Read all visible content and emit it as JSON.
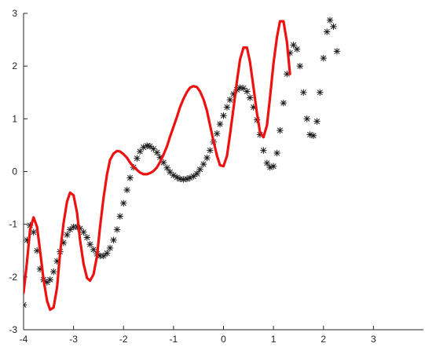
{
  "chart_data": {
    "type": "line",
    "title": "",
    "xlabel": "",
    "ylabel": "",
    "xlim": [
      -4,
      4
    ],
    "ylim": [
      -3,
      3
    ],
    "xticks": [
      "-4",
      "-3",
      "-2",
      "-1",
      "0",
      "1",
      "2",
      "3"
    ],
    "yticks": [
      "-3",
      "-2",
      "-1",
      "0",
      "1",
      "2",
      "3"
    ],
    "grid": false,
    "legend": "none",
    "series": [
      {
        "style": "markers",
        "marker": "asterisk",
        "color": "#1a1a1a",
        "points": [
          [
            -4.0,
            -2.53
          ],
          [
            -3.93,
            -1.3
          ],
          [
            -3.87,
            -1.02
          ],
          [
            -3.8,
            -1.15
          ],
          [
            -3.73,
            -1.5
          ],
          [
            -3.67,
            -1.85
          ],
          [
            -3.6,
            -2.05
          ],
          [
            -3.53,
            -2.1
          ],
          [
            -3.47,
            -2.05
          ],
          [
            -3.4,
            -1.9
          ],
          [
            -3.33,
            -1.7
          ],
          [
            -3.27,
            -1.52
          ],
          [
            -3.2,
            -1.35
          ],
          [
            -3.13,
            -1.2
          ],
          [
            -3.07,
            -1.1
          ],
          [
            -3.0,
            -1.05
          ],
          [
            -2.93,
            -1.05
          ],
          [
            -2.87,
            -1.08
          ],
          [
            -2.8,
            -1.15
          ],
          [
            -2.73,
            -1.25
          ],
          [
            -2.67,
            -1.38
          ],
          [
            -2.6,
            -1.48
          ],
          [
            -2.53,
            -1.56
          ],
          [
            -2.47,
            -1.6
          ],
          [
            -2.4,
            -1.6
          ],
          [
            -2.33,
            -1.55
          ],
          [
            -2.27,
            -1.45
          ],
          [
            -2.2,
            -1.3
          ],
          [
            -2.13,
            -1.1
          ],
          [
            -2.07,
            -0.85
          ],
          [
            -2.0,
            -0.6
          ],
          [
            -1.93,
            -0.35
          ],
          [
            -1.87,
            -0.12
          ],
          [
            -1.8,
            0.08
          ],
          [
            -1.73,
            0.25
          ],
          [
            -1.67,
            0.38
          ],
          [
            -1.6,
            0.46
          ],
          [
            -1.53,
            0.49
          ],
          [
            -1.47,
            0.48
          ],
          [
            -1.4,
            0.43
          ],
          [
            -1.33,
            0.36
          ],
          [
            -1.27,
            0.27
          ],
          [
            -1.2,
            0.17
          ],
          [
            -1.13,
            0.07
          ],
          [
            -1.07,
            -0.01
          ],
          [
            -1.0,
            -0.07
          ],
          [
            -0.93,
            -0.11
          ],
          [
            -0.87,
            -0.14
          ],
          [
            -0.8,
            -0.15
          ],
          [
            -0.73,
            -0.14
          ],
          [
            -0.67,
            -0.12
          ],
          [
            -0.6,
            -0.09
          ],
          [
            -0.53,
            -0.04
          ],
          [
            -0.47,
            0.04
          ],
          [
            -0.4,
            0.14
          ],
          [
            -0.33,
            0.26
          ],
          [
            -0.27,
            0.4
          ],
          [
            -0.2,
            0.56
          ],
          [
            -0.13,
            0.72
          ],
          [
            -0.07,
            0.9
          ],
          [
            0.0,
            1.06
          ],
          [
            0.07,
            1.22
          ],
          [
            0.13,
            1.36
          ],
          [
            0.2,
            1.47
          ],
          [
            0.27,
            1.55
          ],
          [
            0.33,
            1.59
          ],
          [
            0.4,
            1.58
          ],
          [
            0.47,
            1.52
          ],
          [
            0.53,
            1.4
          ],
          [
            0.6,
            1.22
          ],
          [
            0.67,
            0.98
          ],
          [
            0.73,
            0.7
          ],
          [
            0.8,
            0.4
          ],
          [
            0.87,
            0.16
          ],
          [
            0.93,
            0.08
          ],
          [
            1.0,
            0.1
          ],
          [
            1.07,
            0.35
          ],
          [
            1.13,
            0.78
          ],
          [
            1.2,
            1.3
          ],
          [
            1.27,
            1.85
          ],
          [
            1.33,
            2.25
          ],
          [
            1.4,
            2.4
          ],
          [
            1.47,
            2.32
          ],
          [
            1.53,
            2.0
          ],
          [
            1.6,
            1.5
          ],
          [
            1.67,
            1.0
          ],
          [
            1.73,
            0.7
          ],
          [
            1.8,
            0.68
          ],
          [
            1.87,
            0.95
          ],
          [
            1.93,
            1.5
          ],
          [
            2.0,
            2.15
          ],
          [
            2.07,
            2.65
          ],
          [
            2.13,
            2.87
          ],
          [
            2.2,
            2.75
          ],
          [
            2.27,
            2.28
          ]
        ]
      },
      {
        "style": "line",
        "color": "#ee1111",
        "points": [
          [
            -4.0,
            -2.3
          ],
          [
            -3.93,
            -1.7
          ],
          [
            -3.87,
            -1.1
          ],
          [
            -3.8,
            -0.87
          ],
          [
            -3.73,
            -1.05
          ],
          [
            -3.67,
            -1.5
          ],
          [
            -3.6,
            -2.05
          ],
          [
            -3.53,
            -2.45
          ],
          [
            -3.47,
            -2.62
          ],
          [
            -3.4,
            -2.58
          ],
          [
            -3.33,
            -2.2
          ],
          [
            -3.27,
            -1.55
          ],
          [
            -3.2,
            -0.98
          ],
          [
            -3.13,
            -0.57
          ],
          [
            -3.07,
            -0.4
          ],
          [
            -3.0,
            -0.45
          ],
          [
            -2.93,
            -0.78
          ],
          [
            -2.87,
            -1.3
          ],
          [
            -2.8,
            -1.75
          ],
          [
            -2.73,
            -2.02
          ],
          [
            -2.67,
            -2.07
          ],
          [
            -2.6,
            -1.95
          ],
          [
            -2.53,
            -1.6
          ],
          [
            -2.47,
            -1.05
          ],
          [
            -2.4,
            -0.5
          ],
          [
            -2.33,
            -0.05
          ],
          [
            -2.27,
            0.22
          ],
          [
            -2.2,
            0.34
          ],
          [
            -2.13,
            0.39
          ],
          [
            -2.07,
            0.38
          ],
          [
            -2.0,
            0.33
          ],
          [
            -1.93,
            0.26
          ],
          [
            -1.87,
            0.17
          ],
          [
            -1.8,
            0.09
          ],
          [
            -1.73,
            0.03
          ],
          [
            -1.67,
            -0.02
          ],
          [
            -1.6,
            -0.05
          ],
          [
            -1.53,
            -0.05
          ],
          [
            -1.47,
            -0.03
          ],
          [
            -1.4,
            0.01
          ],
          [
            -1.33,
            0.08
          ],
          [
            -1.27,
            0.18
          ],
          [
            -1.2,
            0.32
          ],
          [
            -1.13,
            0.48
          ],
          [
            -1.07,
            0.66
          ],
          [
            -1.0,
            0.85
          ],
          [
            -0.93,
            1.04
          ],
          [
            -0.87,
            1.22
          ],
          [
            -0.8,
            1.38
          ],
          [
            -0.73,
            1.51
          ],
          [
            -0.67,
            1.59
          ],
          [
            -0.6,
            1.62
          ],
          [
            -0.53,
            1.6
          ],
          [
            -0.47,
            1.52
          ],
          [
            -0.4,
            1.37
          ],
          [
            -0.33,
            1.15
          ],
          [
            -0.27,
            0.88
          ],
          [
            -0.2,
            0.58
          ],
          [
            -0.13,
            0.3
          ],
          [
            -0.07,
            0.12
          ],
          [
            0.0,
            0.1
          ],
          [
            0.07,
            0.3
          ],
          [
            0.13,
            0.7
          ],
          [
            0.2,
            1.2
          ],
          [
            0.27,
            1.72
          ],
          [
            0.33,
            2.12
          ],
          [
            0.4,
            2.35
          ],
          [
            0.47,
            2.35
          ],
          [
            0.53,
            2.08
          ],
          [
            0.6,
            1.6
          ],
          [
            0.67,
            1.1
          ],
          [
            0.73,
            0.75
          ],
          [
            0.8,
            0.65
          ],
          [
            0.87,
            0.88
          ],
          [
            0.93,
            1.4
          ],
          [
            1.0,
            2.05
          ],
          [
            1.07,
            2.55
          ],
          [
            1.13,
            2.85
          ],
          [
            1.2,
            2.85
          ],
          [
            1.27,
            2.45
          ],
          [
            1.33,
            1.85
          ]
        ]
      }
    ]
  }
}
